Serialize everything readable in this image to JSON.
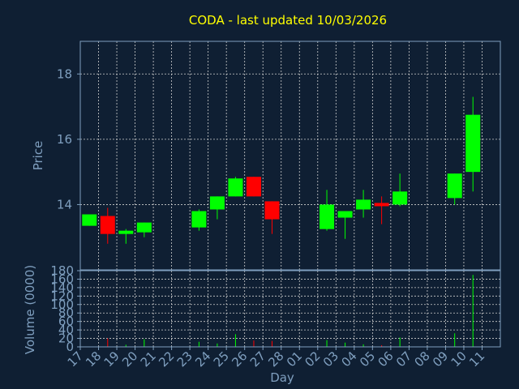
{
  "chart_data": {
    "type": "candlestick",
    "title": "CODA - last updated 10/03/2026",
    "xlabel": "Day",
    "price_panel": {
      "ylabel": "Price",
      "ylim": [
        12.0,
        19.0
      ],
      "yticks": [
        14,
        16,
        18
      ],
      "grid": true
    },
    "volume_panel": {
      "ylabel": "Volume (0000)",
      "ylim": [
        0,
        180
      ],
      "yticks": [
        0,
        20,
        40,
        60,
        80,
        100,
        120,
        140,
        160,
        180
      ],
      "grid": true
    },
    "colors": {
      "background": "#0f1f33",
      "axis": "#7f9fbf",
      "grid": "#d0d0d0",
      "title": "#ffff00",
      "up": "#00ff00",
      "down": "#ff0000"
    },
    "categories": [
      "17",
      "18",
      "19",
      "20",
      "21",
      "22",
      "23",
      "24",
      "25",
      "26",
      "27",
      "28",
      "01",
      "02",
      "03",
      "04",
      "05",
      "06",
      "07",
      "08",
      "09",
      "10",
      "11"
    ],
    "candles": [
      {
        "day": "17",
        "open": 13.35,
        "close": 13.7,
        "high": 13.7,
        "low": 13.35,
        "volume": 0
      },
      {
        "day": "18",
        "open": 13.65,
        "close": 13.1,
        "high": 13.9,
        "low": 12.8,
        "volume": 20
      },
      {
        "day": "19",
        "open": 13.1,
        "close": 13.2,
        "high": 13.25,
        "low": 12.8,
        "volume": 5
      },
      {
        "day": "20",
        "open": 13.15,
        "close": 13.45,
        "high": 13.45,
        "low": 13.0,
        "volume": 18
      },
      {
        "day": "23",
        "open": 13.3,
        "close": 13.8,
        "high": 13.85,
        "low": 13.2,
        "volume": 12
      },
      {
        "day": "24",
        "open": 13.85,
        "close": 14.25,
        "high": 14.25,
        "low": 13.55,
        "volume": 8
      },
      {
        "day": "25",
        "open": 14.25,
        "close": 14.8,
        "high": 14.85,
        "low": 14.25,
        "volume": 30
      },
      {
        "day": "26",
        "open": 14.85,
        "close": 14.25,
        "high": 14.85,
        "low": 14.25,
        "volume": 15
      },
      {
        "day": "27",
        "open": 14.1,
        "close": 13.55,
        "high": 14.1,
        "low": 13.1,
        "volume": 14
      },
      {
        "day": "02",
        "open": 13.25,
        "close": 14.0,
        "high": 14.45,
        "low": 13.2,
        "volume": 16
      },
      {
        "day": "03",
        "open": 13.6,
        "close": 13.8,
        "high": 13.8,
        "low": 12.95,
        "volume": 10
      },
      {
        "day": "04",
        "open": 13.85,
        "close": 14.15,
        "high": 14.45,
        "low": 13.6,
        "volume": 6
      },
      {
        "day": "05",
        "open": 14.05,
        "close": 13.95,
        "high": 14.25,
        "low": 13.4,
        "volume": 4
      },
      {
        "day": "06",
        "open": 14.0,
        "close": 14.4,
        "high": 14.95,
        "low": 13.95,
        "volume": 22
      },
      {
        "day": "09",
        "open": 14.2,
        "close": 14.95,
        "high": 14.95,
        "low": 14.0,
        "volume": 32
      },
      {
        "day": "10",
        "open": 15.0,
        "close": 16.75,
        "high": 17.3,
        "low": 14.4,
        "volume": 170
      }
    ]
  }
}
